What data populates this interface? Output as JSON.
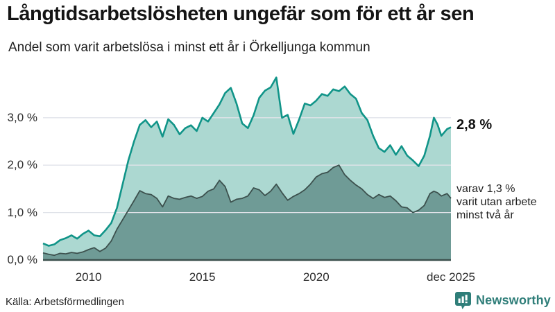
{
  "header": {
    "title": "Långtidsarbetslösheten ungefär som för ett år sen",
    "subtitle": "Andel som varit arbetslösa i minst ett år i Örkelljunga kommun"
  },
  "chart_data": {
    "type": "area",
    "title": "Långtidsarbetslösheten ungefär som för ett år sen",
    "subtitle": "Andel som varit arbetslösa i minst ett år i Örkelljunga kommun",
    "unit": "%",
    "x_range": [
      2008.0,
      2025.92
    ],
    "ylim": [
      0,
      4
    ],
    "grid": true,
    "y_ticks": [
      {
        "value": 0,
        "label": "0,0 %"
      },
      {
        "value": 1,
        "label": "1,0 %"
      },
      {
        "value": 2,
        "label": "2,0 %"
      },
      {
        "value": 3,
        "label": "3,0 %"
      }
    ],
    "x_ticks": [
      {
        "x": 2010,
        "label": "2010"
      },
      {
        "x": 2015,
        "label": "2015"
      },
      {
        "x": 2020,
        "label": "2020"
      },
      {
        "x": 2025.92,
        "label": "dec 2025"
      }
    ],
    "x": [
      2008.0,
      2008.25,
      2008.5,
      2008.75,
      2009.0,
      2009.25,
      2009.5,
      2009.75,
      2010.0,
      2010.25,
      2010.5,
      2010.75,
      2011.0,
      2011.25,
      2011.5,
      2011.75,
      2012.0,
      2012.25,
      2012.5,
      2012.75,
      2013.0,
      2013.25,
      2013.5,
      2013.75,
      2014.0,
      2014.25,
      2014.5,
      2014.75,
      2015.0,
      2015.25,
      2015.5,
      2015.75,
      2016.0,
      2016.25,
      2016.5,
      2016.75,
      2017.0,
      2017.25,
      2017.5,
      2017.75,
      2018.0,
      2018.25,
      2018.5,
      2018.75,
      2019.0,
      2019.25,
      2019.5,
      2019.75,
      2020.0,
      2020.25,
      2020.5,
      2020.75,
      2021.0,
      2021.25,
      2021.5,
      2021.75,
      2022.0,
      2022.25,
      2022.5,
      2022.75,
      2023.0,
      2023.25,
      2023.5,
      2023.75,
      2024.0,
      2024.25,
      2024.5,
      2024.75,
      2025.0,
      2025.17,
      2025.33,
      2025.5,
      2025.75,
      2025.92
    ],
    "series": [
      {
        "name": "Andel arbetslösa minst ett år",
        "end_value": "2,8 %",
        "line_color": "#109488",
        "fill_color": "#acd8d1",
        "values": [
          0.35,
          0.3,
          0.33,
          0.42,
          0.46,
          0.52,
          0.45,
          0.55,
          0.62,
          0.52,
          0.5,
          0.63,
          0.78,
          1.1,
          1.6,
          2.1,
          2.5,
          2.85,
          2.95,
          2.8,
          2.92,
          2.6,
          2.97,
          2.85,
          2.65,
          2.78,
          2.84,
          2.72,
          3.0,
          2.92,
          3.1,
          3.28,
          3.52,
          3.63,
          3.3,
          2.88,
          2.78,
          3.05,
          3.42,
          3.57,
          3.64,
          3.85,
          3.0,
          3.06,
          2.66,
          2.96,
          3.3,
          3.26,
          3.36,
          3.5,
          3.46,
          3.6,
          3.56,
          3.66,
          3.5,
          3.4,
          3.1,
          2.95,
          2.62,
          2.36,
          2.28,
          2.42,
          2.22,
          2.4,
          2.2,
          2.1,
          1.98,
          2.2,
          2.62,
          3.0,
          2.86,
          2.62,
          2.76,
          2.8
        ]
      },
      {
        "name": "varav utan arbete minst två år",
        "end_value": "1,3 %",
        "line_color": "#3c504d",
        "fill_color": "#6f9b96",
        "values": [
          0.15,
          0.12,
          0.1,
          0.14,
          0.13,
          0.16,
          0.14,
          0.17,
          0.22,
          0.26,
          0.18,
          0.25,
          0.4,
          0.65,
          0.85,
          1.05,
          1.25,
          1.46,
          1.4,
          1.38,
          1.3,
          1.12,
          1.35,
          1.3,
          1.28,
          1.32,
          1.35,
          1.3,
          1.34,
          1.45,
          1.5,
          1.68,
          1.55,
          1.22,
          1.28,
          1.3,
          1.35,
          1.52,
          1.48,
          1.36,
          1.45,
          1.6,
          1.42,
          1.26,
          1.34,
          1.4,
          1.48,
          1.6,
          1.75,
          1.82,
          1.85,
          1.95,
          2.0,
          1.8,
          1.68,
          1.58,
          1.5,
          1.38,
          1.3,
          1.38,
          1.32,
          1.35,
          1.25,
          1.12,
          1.1,
          1.0,
          1.05,
          1.15,
          1.4,
          1.45,
          1.42,
          1.35,
          1.4,
          1.3
        ]
      }
    ]
  },
  "annotations": {
    "end_label_primary": "2,8 %",
    "end_label_secondary_lines": [
      "varav 1,3 %",
      "varit utan arbete",
      "minst två år"
    ]
  },
  "footer": {
    "source": "Källa: Arbetsförmedlingen",
    "brand": "Newsworthy"
  },
  "colors": {
    "accent_teal": "#109488",
    "light_fill": "#acd8d1",
    "dark_fill": "#6f9b96",
    "dark_line": "#3c504d",
    "gridline": "#e0e3e9",
    "brand_teal": "#2f7e79"
  }
}
